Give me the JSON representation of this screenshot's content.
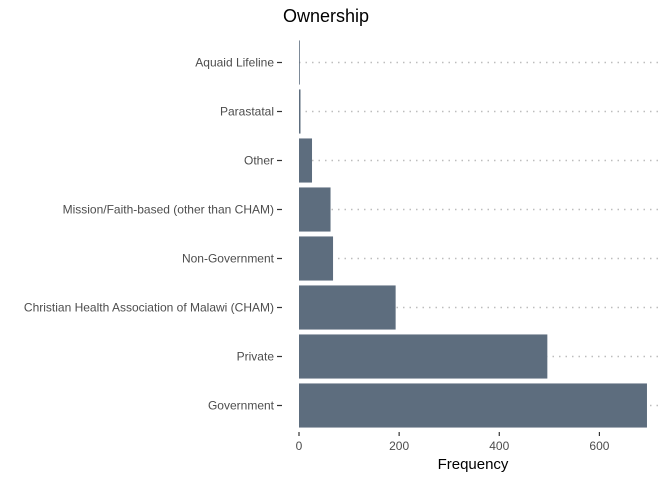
{
  "chart_data": {
    "type": "bar",
    "orientation": "horizontal",
    "title": "Ownership",
    "xlabel": "Frequency",
    "ylabel": "",
    "categories": [
      "Government",
      "Private",
      "Christian Health Association of Malawi (CHAM)",
      "Non-Government",
      "Mission/Faith-based (other than CHAM)",
      "Other",
      "Parastatal",
      "Aquaid Lifeline"
    ],
    "values": [
      695,
      496,
      193,
      68,
      63,
      26,
      3,
      1
    ],
    "xlim": [
      0,
      725
    ],
    "xticks": [
      0,
      200,
      400,
      600
    ],
    "xtick_labels": [
      "0",
      "200",
      "400",
      "600"
    ],
    "bar_color": "#5d6d7e",
    "grid": "dotted horizontal at categories",
    "legend": "none"
  }
}
